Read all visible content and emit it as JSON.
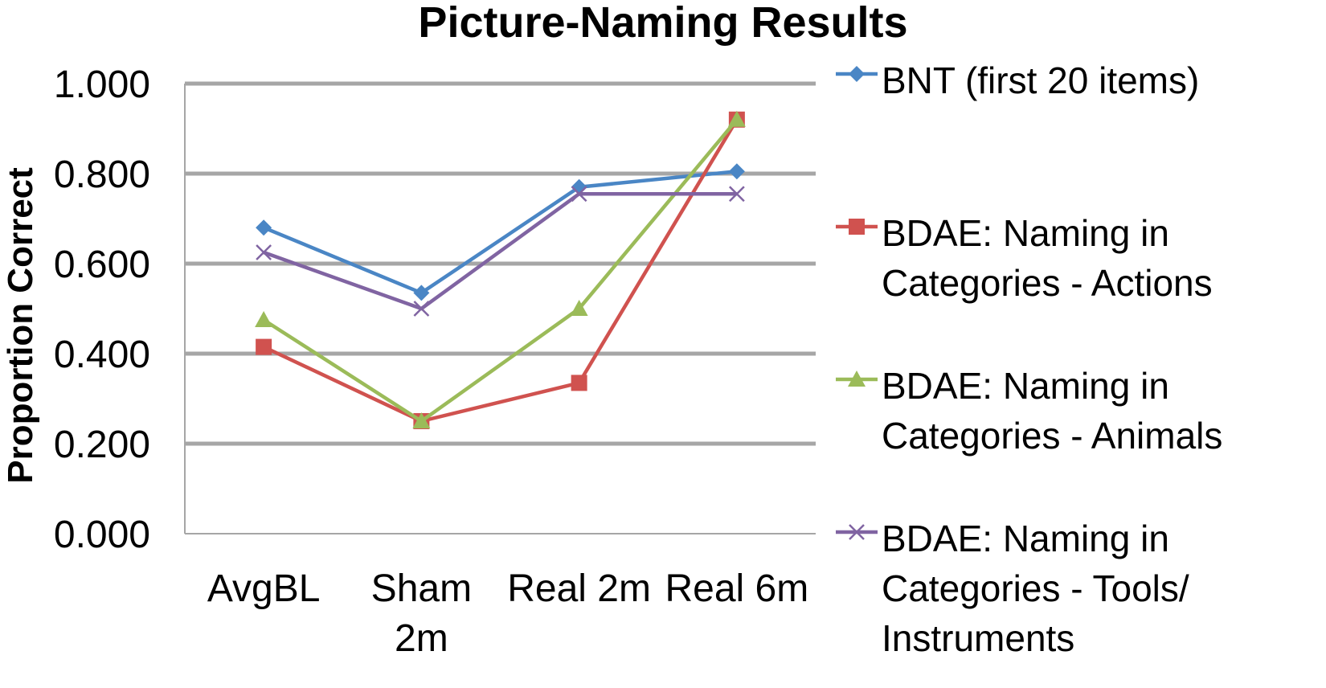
{
  "chart_data": {
    "type": "line",
    "title": "Picture-Naming Results",
    "xlabel": "",
    "ylabel": "Proportion Correct",
    "categories": [
      [
        "AvgBL"
      ],
      [
        "Sham",
        "2m"
      ],
      [
        "Real 2m"
      ],
      [
        "Real 6m"
      ]
    ],
    "ylim": [
      0,
      1
    ],
    "yticks": [
      "0.000",
      "0.200",
      "0.400",
      "0.600",
      "0.800",
      "1.000"
    ],
    "grid": true,
    "legend_position": "right",
    "series": [
      {
        "name": [
          "BNT (first 20 items)"
        ],
        "color": "#4a86c5",
        "marker": "diamond",
        "values": [
          0.68,
          0.535,
          0.77,
          0.805
        ]
      },
      {
        "name": [
          "BDAE: Naming in",
          "Categories - Actions"
        ],
        "color": "#d0524f",
        "marker": "square",
        "values": [
          0.415,
          0.25,
          0.335,
          0.92
        ]
      },
      {
        "name": [
          "BDAE: Naming in",
          "Categories - Animals"
        ],
        "color": "#9bbb59",
        "marker": "triangle",
        "values": [
          0.475,
          0.25,
          0.5,
          0.92
        ]
      },
      {
        "name": [
          "BDAE: Naming in",
          "Categories - Tools/",
          "Instruments"
        ],
        "color": "#8064a2",
        "marker": "x",
        "values": [
          0.625,
          0.5,
          0.755,
          0.755
        ]
      }
    ]
  }
}
